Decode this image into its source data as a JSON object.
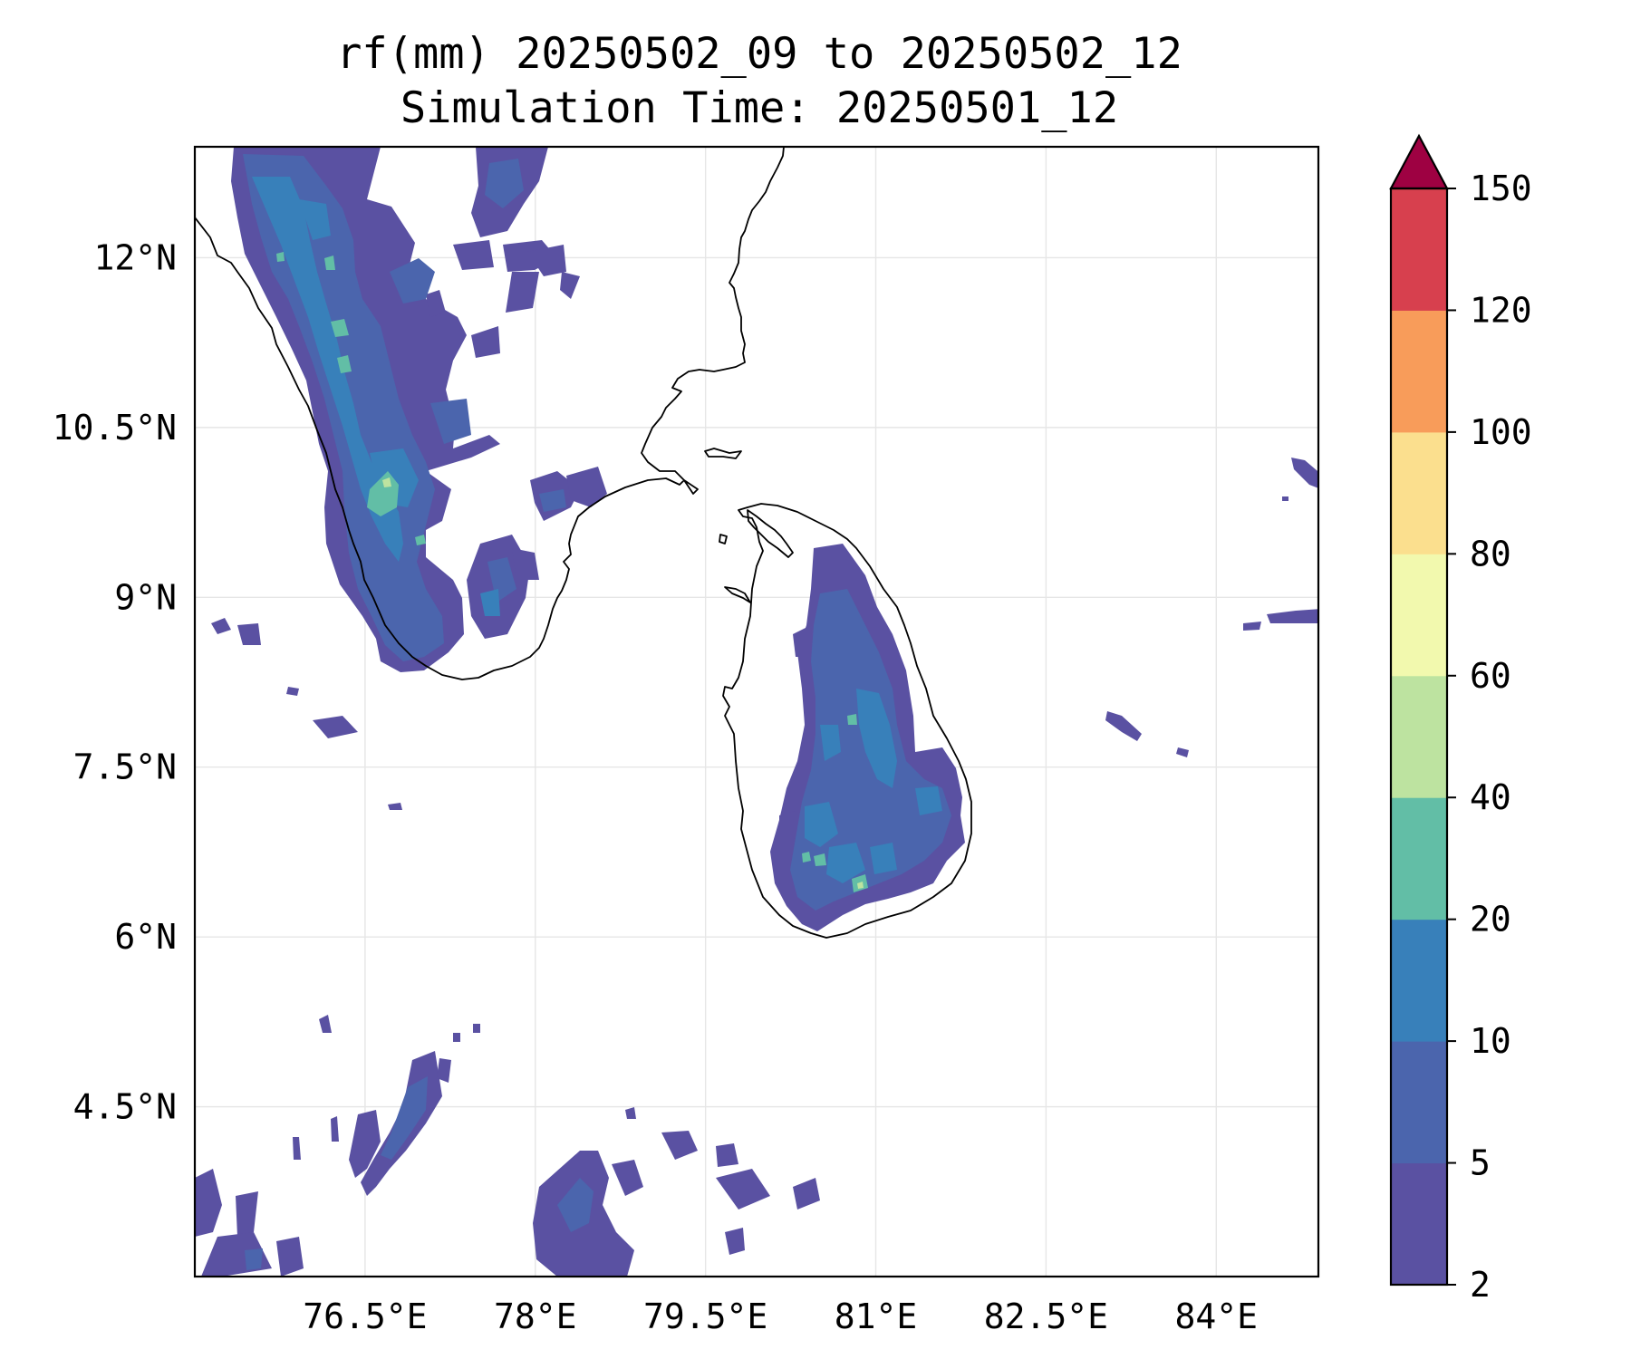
{
  "title_line1": "rf(mm) 20250502_09 to 20250502_12",
  "title_line2": "Simulation Time: 20250501_12",
  "map": {
    "lon_range": [
      75.0,
      84.9
    ],
    "lat_range": [
      3.0,
      12.98
    ],
    "lon_ticks": [
      76.5,
      78,
      79.5,
      81,
      82.5,
      84
    ],
    "lon_tick_labels": [
      "76.5°E",
      "78°E",
      "79.5°E",
      "81°E",
      "82.5°E",
      "84°E"
    ],
    "lat_ticks": [
      12,
      10.5,
      9,
      7.5,
      6,
      4.5
    ],
    "lat_tick_labels": [
      "12°N",
      "10.5°N",
      "9°N",
      "7.5°N",
      "6°N",
      "4.5°N"
    ],
    "gridlines": true
  },
  "colorbar": {
    "levels": [
      2,
      5,
      10,
      20,
      40,
      60,
      80,
      100,
      120,
      150
    ],
    "tick_labels": [
      "2",
      "5",
      "10",
      "20",
      "40",
      "60",
      "80",
      "100",
      "120",
      "150"
    ],
    "colors": [
      "#5a51a2",
      "#4b65ad",
      "#3880ba",
      "#62bea6",
      "#bde3a0",
      "#f2f9ae",
      "#fbdf8e",
      "#f89c5a",
      "#d7404e"
    ],
    "extend_max_color": "#9e0142",
    "extend": "max"
  },
  "rain_colors": {
    "c2": "#5a51a2",
    "c5": "#4b65ad",
    "c10": "#3880ba",
    "c20": "#62bea6",
    "c40": "#bde3a0"
  }
}
